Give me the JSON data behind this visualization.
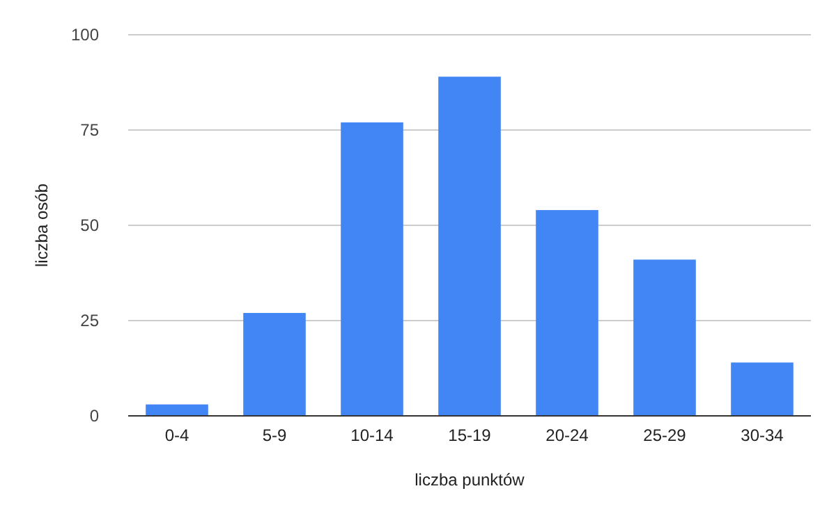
{
  "chart_data": {
    "type": "bar",
    "xlabel": "liczba punktów",
    "ylabel": "liczba osób",
    "categories": [
      "0-4",
      "5-9",
      "10-14",
      "15-19",
      "20-24",
      "25-29",
      "30-34"
    ],
    "values": [
      3,
      27,
      77,
      89,
      54,
      41,
      14
    ],
    "color": "#4285f4",
    "ylim": [
      0,
      100
    ],
    "yticks": [
      0,
      25,
      50,
      75,
      100
    ],
    "grid": "y"
  }
}
